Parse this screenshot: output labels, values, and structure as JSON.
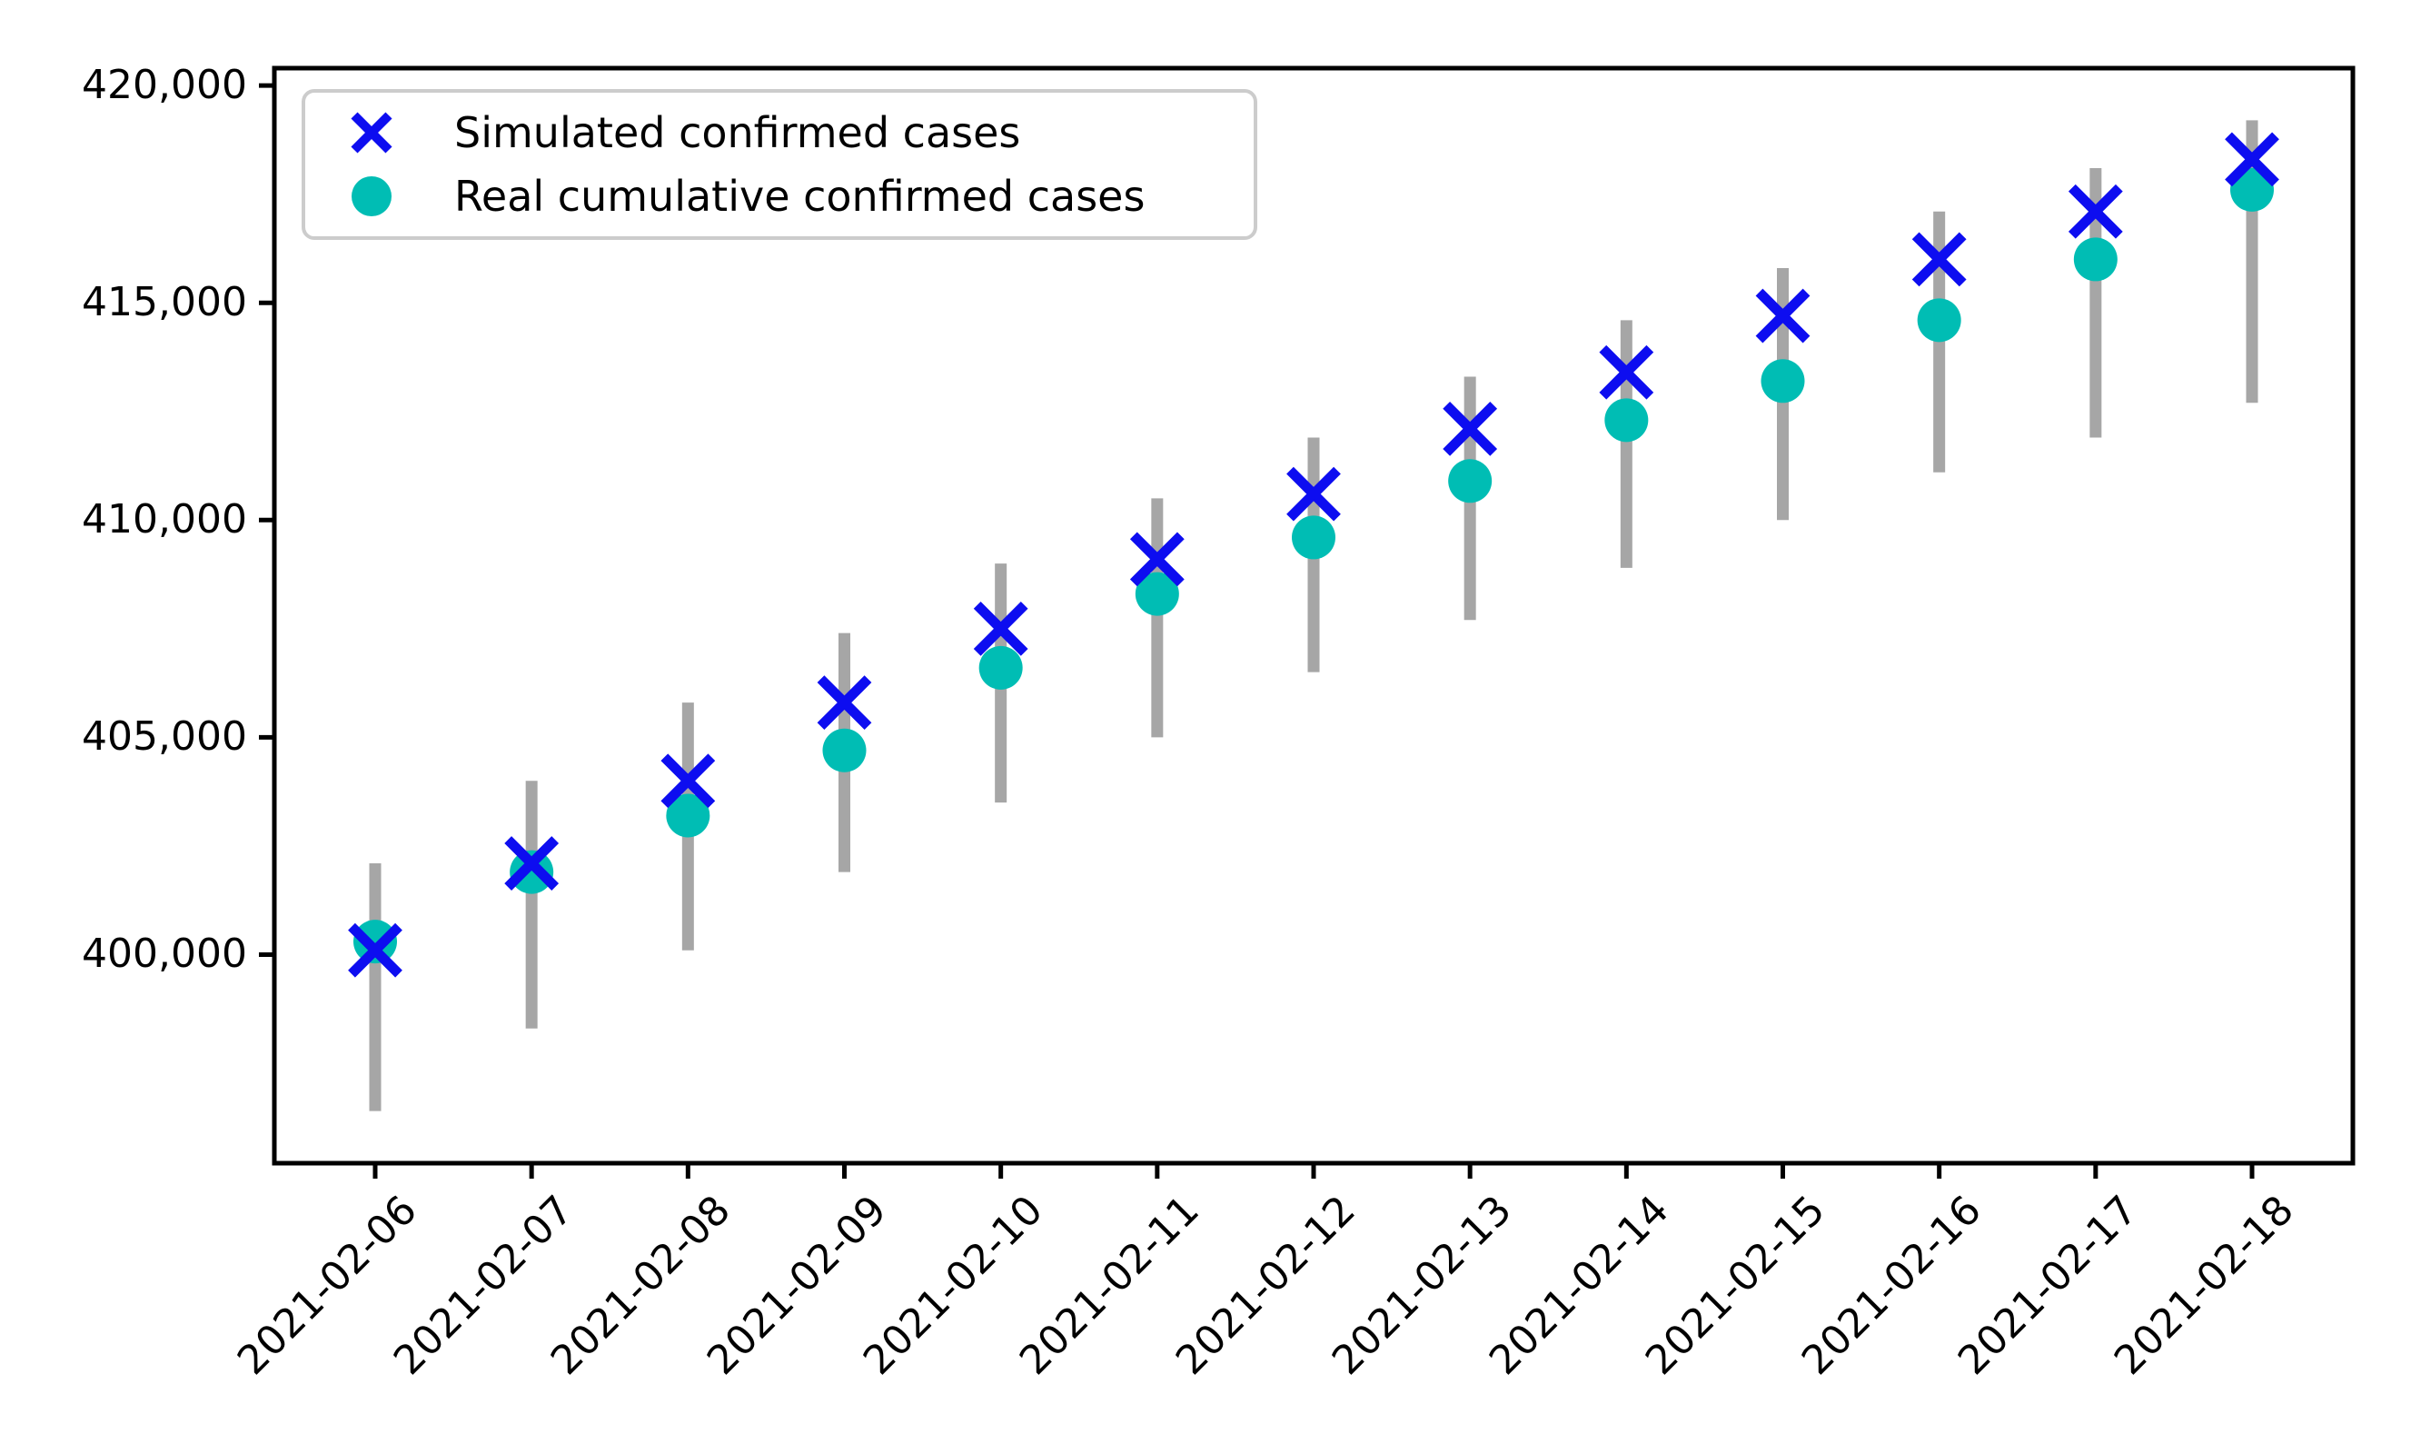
{
  "chart_data": {
    "type": "scatter",
    "title": "",
    "xlabel": "",
    "ylabel": "",
    "x": [
      "2021-02-06",
      "2021-02-07",
      "2021-02-08",
      "2021-02-09",
      "2021-02-10",
      "2021-02-11",
      "2021-02-12",
      "2021-02-13",
      "2021-02-14",
      "2021-02-15",
      "2021-02-16",
      "2021-02-17",
      "2021-02-18"
    ],
    "series": [
      {
        "name": "Simulated confirmed cases",
        "marker": "x",
        "color": "#0d0df0",
        "values": [
          400100,
          402100,
          404000,
          405800,
          407500,
          409100,
          410600,
          412100,
          413400,
          414700,
          416000,
          417100,
          418300
        ]
      },
      {
        "name": "Real cumulative confirmed cases",
        "marker": "circle",
        "color": "#00bdb4",
        "values": [
          400300,
          401900,
          403200,
          404700,
          406600,
          408300,
          409600,
          410900,
          412300,
          413200,
          414600,
          416000,
          417600
        ]
      }
    ],
    "error_bars": {
      "attached_to": "Simulated confirmed cases",
      "color": "#a6a6a6",
      "low": [
        396400,
        398300,
        400100,
        401900,
        403500,
        405000,
        406500,
        407700,
        408900,
        410000,
        411100,
        411900,
        412700
      ],
      "high": [
        402100,
        404000,
        405800,
        407400,
        409000,
        410500,
        411900,
        413300,
        414600,
        415800,
        417100,
        418100,
        419200
      ]
    },
    "ylim": [
      395200,
      420400
    ],
    "yticks": {
      "values": [
        400000,
        405000,
        410000,
        415000,
        420000
      ],
      "labels": [
        "400,000",
        "405,000",
        "410,000",
        "415,000",
        "420,000"
      ]
    },
    "x_tick_rotation_deg": 45,
    "grid": false,
    "legend_position": "upper-left"
  },
  "colors": {
    "axis": "#000000",
    "tick_label": "#000000",
    "legend_border": "#cccccc",
    "background": "#ffffff"
  }
}
